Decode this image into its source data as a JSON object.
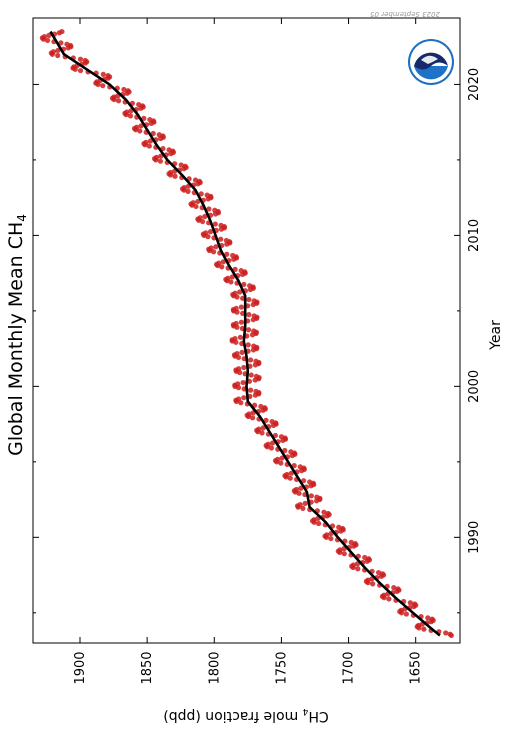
{
  "chart_data": {
    "type": "line",
    "orientation": "rotated 90 degrees clockwise",
    "title": "Global Monthly Mean CH",
    "title_subscript": "4",
    "xlabel": "Year",
    "ylabel_prefix": "CH",
    "ylabel_subscript": "4",
    "ylabel_suffix": " mole fraction (ppb)",
    "xlim": [
      1983.0,
      2024.4
    ],
    "ylim": [
      1617,
      1935
    ],
    "x_ticks": [
      1990,
      2000,
      2010,
      2020
    ],
    "x_tick_labels": [
      "1990",
      "2000",
      "2010",
      "2020"
    ],
    "x_minor_ticks": [
      1985,
      1995,
      2005,
      2015
    ],
    "y_ticks": [
      1650,
      1700,
      1750,
      1800,
      1850,
      1900
    ],
    "y_tick_labels": [
      "1650",
      "1700",
      "1750",
      "1800",
      "1850",
      "1900"
    ],
    "grid": false,
    "date_stamp": "2023 September 05",
    "logo": "noaa-logo",
    "series": [
      {
        "style": "monthly-points",
        "color": "#cc1f1f",
        "seasonal_amplitude_ppb": 9,
        "x": [
          1983.5,
          1984,
          1985,
          1986,
          1987,
          1988,
          1989,
          1990,
          1991,
          1992,
          1993,
          1994,
          1995,
          1996,
          1997,
          1998,
          1999,
          2000,
          2001,
          2002,
          2003,
          2004,
          2005,
          2006,
          2007,
          2008,
          2009,
          2010,
          2011,
          2012,
          2013,
          2014,
          2015,
          2016,
          2017,
          2018,
          2019,
          2020,
          2021,
          2022,
          2023.5
        ],
        "values": [
          1632,
          1639,
          1652,
          1665,
          1677,
          1688,
          1698,
          1708,
          1717,
          1729,
          1731,
          1738,
          1745,
          1752,
          1759,
          1766,
          1775,
          1776,
          1775,
          1776,
          1778,
          1777,
          1777,
          1777,
          1782,
          1789,
          1795,
          1799,
          1803,
          1808,
          1814,
          1824,
          1835,
          1843,
          1850,
          1857,
          1866,
          1878,
          1895,
          1912,
          1922
        ]
      },
      {
        "style": "deseasonalized-trend",
        "color": "#000000",
        "x": [
          1983.5,
          1984,
          1985,
          1986,
          1987,
          1988,
          1989,
          1990,
          1991,
          1992,
          1993,
          1994,
          1995,
          1996,
          1997,
          1998,
          1999,
          2000,
          2001,
          2002,
          2003,
          2004,
          2005,
          2006,
          2007,
          2008,
          2009,
          2010,
          2011,
          2012,
          2013,
          2014,
          2015,
          2016,
          2017,
          2018,
          2019,
          2020,
          2021,
          2022,
          2023.5
        ],
        "values": [
          1632,
          1639,
          1652,
          1665,
          1677,
          1688,
          1698,
          1708,
          1717,
          1729,
          1731,
          1738,
          1745,
          1752,
          1759,
          1766,
          1775,
          1776,
          1775,
          1776,
          1778,
          1777,
          1777,
          1777,
          1782,
          1789,
          1795,
          1799,
          1803,
          1808,
          1814,
          1824,
          1835,
          1843,
          1850,
          1857,
          1866,
          1878,
          1895,
          1912,
          1922
        ]
      }
    ]
  }
}
